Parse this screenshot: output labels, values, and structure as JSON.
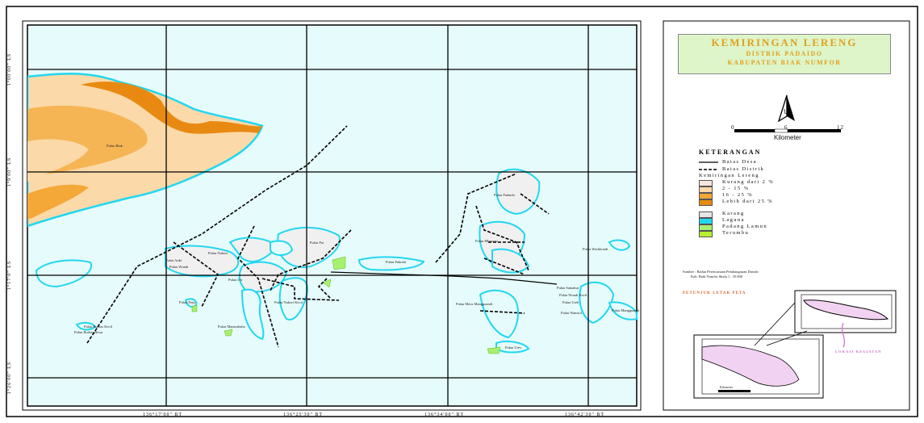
{
  "title": {
    "main": "KEMIRINGAN LERENG",
    "line2": "DISTRIK PADAIDO",
    "line3": "KABUPATEN BIAK NUMFOR"
  },
  "north": {
    "label": "U"
  },
  "scale": {
    "ticks": [
      "0",
      "6",
      "12"
    ],
    "unit": "Kilometer"
  },
  "legend": {
    "heading": "KETERANGAN",
    "items": [
      {
        "label": "Batas Desa",
        "kind": "line"
      },
      {
        "label": "Batas Distrik",
        "kind": "dashline"
      },
      {
        "label": "Kemiringan Lereng",
        "kind": "header"
      },
      {
        "label": "Kurang dari 2 %",
        "kind": "fill",
        "color": "#f7e6dc"
      },
      {
        "label": "2 - 15 %",
        "kind": "fill",
        "color": "#fbd9a8"
      },
      {
        "label": "16 - 25 %",
        "kind": "fill",
        "color": "#f4a838"
      },
      {
        "label": "Lebih dari 25 %",
        "kind": "fill",
        "color": "#e88a12"
      },
      {
        "label": "Karang",
        "kind": "fill",
        "color": "#e6e6e6"
      },
      {
        "label": "Laguna",
        "kind": "fill",
        "color": "#22d7f0"
      },
      {
        "label": "Padang Lamun",
        "kind": "fill",
        "color": "#a8f070"
      },
      {
        "label": "Terumbu",
        "kind": "fill",
        "color": "#b6f032"
      }
    ],
    "source_line1": "Sumber : Badan Perencanaan Pembangunan Daerah",
    "source_line2": "Kab. Biak Numfor Skala 1 : 35.000"
  },
  "inset": {
    "title": "PETUNJUK LETAK PETA",
    "callout": "LOKASI KEGIATAN",
    "scale_label": "Kilometer"
  },
  "axes": {
    "lon_ticks": [
      "136°17'00\" BT",
      "136°25'30\" BT",
      "136°34'00\" BT",
      "136°42'30\" BT"
    ],
    "lat_ticks": [
      "1°00'00\" LS",
      "1°9'00\" LS",
      "1°17'0\" LS",
      "1°26'00\" LS"
    ]
  },
  "places": [
    "Pulau Biak",
    "Pulau Pakreki",
    "Pulau Nukori",
    "Pulau Wundi",
    "Pulau Auki",
    "Pulau Meos Mangguandi",
    "Pulau Rurbas Kecil",
    "Pulau Rurbas Besar",
    "Pulau Mansurbabo",
    "Pulau Pai",
    "Pulau Padaido",
    "Pulau Nusi",
    "Pulau Urev",
    "Pulau Wamsoi",
    "Pulau Workbondi",
    "Pulau Samakur",
    "Pulau Wundi Kecil",
    "Pulau Mbromsi",
    "Pulau Ureb",
    "Pulau Uri",
    "Pulau Nukori Kecil",
    "Pulau Mangguandi"
  ],
  "colors": {
    "sea": "#e6fbfb",
    "reef_outline": "#22d7f0",
    "slope_low": "#fbd9a8",
    "slope_mid": "#f4a838",
    "slope_high": "#e88a12",
    "flat": "#f7e6dc",
    "lamun": "#a8f070",
    "legend_bg": "#bebebe",
    "title_bg": "#ddf5c8",
    "inset_bg": "#f3eaa7"
  }
}
